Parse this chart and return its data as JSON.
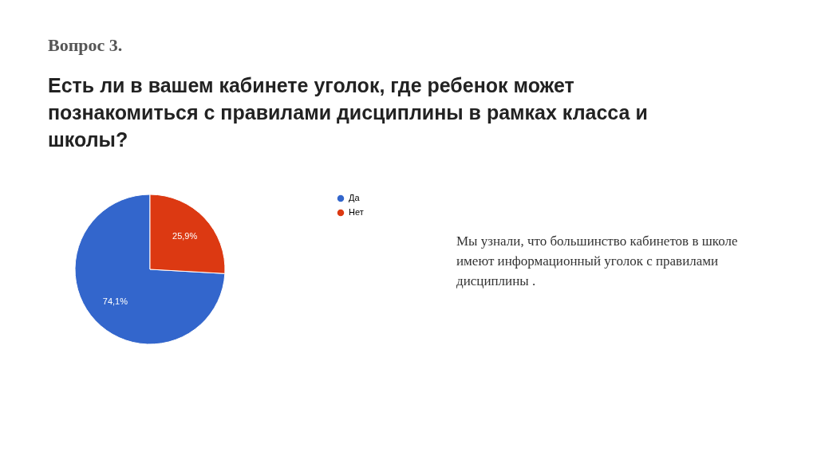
{
  "chart_data": {
    "type": "pie",
    "title": "Вопрос 3.",
    "subtitle": "Есть ли в вашем кабинете уголок, где ребенок может познакомиться с правилами дисциплины в рамках класса и школы?",
    "categories": [
      "Да",
      "Нет"
    ],
    "values": [
      74.1,
      25.9
    ],
    "colors": [
      "#3366cc",
      "#dc3912"
    ],
    "value_labels": [
      "74,1%",
      "25,9%"
    ],
    "legend": "right",
    "annotations": [
      "Мы узнали, что большинство кабинетов в школе имеют информационный уголок с правилами дисциплины ."
    ]
  }
}
